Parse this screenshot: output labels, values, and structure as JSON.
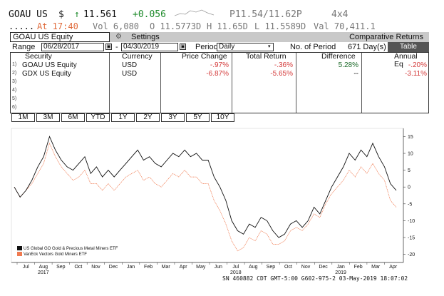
{
  "ticker": {
    "symbol": "GOAU US",
    "currency_symbol": "$",
    "arrow": "↑",
    "last": "11.561",
    "change": "+0.056",
    "bid_ask": "P11.54/11.62P",
    "size": "4x4",
    "dots": ".....",
    "time": "At 17:40",
    "vol": "Vol 6,080",
    "open": "O 11.5773D",
    "high": "H 11.65D",
    "low": "L 11.5589D",
    "val": "Val 70,411.1"
  },
  "titlebar": {
    "security": "GOAU US Equity",
    "settings": "Settings",
    "comparative": "Comparative Returns"
  },
  "range": {
    "label": "Range",
    "start": "06/28/2017",
    "end": "04/30/2019",
    "period_label": "Period",
    "period_value": "Daily",
    "num_periods_label": "No. of Period",
    "num_periods_value": "671 Day(s)",
    "table_button": "Table"
  },
  "grid": {
    "headers": {
      "security": "Security",
      "currency": "Currency",
      "price_change": "Price Change",
      "total_return": "Total Return",
      "difference": "Difference",
      "annual_eq": "Annual Eq"
    },
    "rows": [
      {
        "num": "1)",
        "security": "GOAU US Equity",
        "currency": "USD",
        "price_change": "-.97%",
        "total_return": "-.36%",
        "difference": "5.28%",
        "annual_eq": "-.20%"
      },
      {
        "num": "2)",
        "security": "GDX US Equity",
        "currency": "USD",
        "price_change": "-6.87%",
        "total_return": "-5.65%",
        "difference": "--",
        "annual_eq": "-3.11%"
      }
    ],
    "empty_row_nums": [
      "3)",
      "4)",
      "5)",
      "6)"
    ]
  },
  "periods": [
    "1M",
    "3M",
    "6M",
    "YTD",
    "1Y",
    "2Y",
    "3Y",
    "5Y",
    "10Y"
  ],
  "chart_data": {
    "type": "line",
    "x_tick_labels": [
      "Jul",
      "Aug",
      "Sep",
      "Oct",
      "Nov",
      "Dec",
      "Jan",
      "Feb",
      "Mar",
      "Apr",
      "May",
      "Jun",
      "Jul",
      "Aug",
      "Sep",
      "Oct",
      "Nov",
      "Dec",
      "Jan",
      "Feb",
      "Mar",
      "Apr"
    ],
    "year_labels": [
      {
        "label": "2017",
        "after_month": 1
      },
      {
        "label": "2018",
        "after_month": 12
      },
      {
        "label": "2019",
        "after_month": 18
      }
    ],
    "y_ticks": [
      15,
      10,
      5,
      0,
      -5,
      -10,
      -15,
      -20
    ],
    "ylim": [
      -22,
      17
    ],
    "series": [
      {
        "name": "US Global GO Gold & Precious Metal Miners ETF",
        "color": "#111111",
        "values": [
          0,
          -3,
          -1,
          2,
          6,
          9,
          15,
          11,
          8,
          6,
          5,
          7,
          9,
          4,
          6,
          3,
          5,
          3,
          5,
          7,
          9,
          11,
          8,
          9,
          7,
          6,
          8,
          10,
          9,
          11,
          9,
          10,
          8,
          8,
          3,
          0,
          -4,
          -10,
          -13,
          -14,
          -11,
          -12,
          -9,
          -10,
          -13,
          -15,
          -14,
          -11,
          -10,
          -12,
          -10,
          -6,
          -8,
          -4,
          0,
          3,
          6,
          10,
          8,
          11,
          9,
          13,
          9,
          6,
          1,
          -1
        ]
      },
      {
        "name": "VanEck Vectors Gold Miners ETF",
        "color": "#f07a50",
        "values": [
          0,
          -3,
          -1,
          1,
          4,
          7,
          13,
          9,
          6,
          4,
          2,
          3,
          5,
          1,
          1,
          -1,
          1,
          -1,
          1,
          3,
          4,
          5,
          2,
          3,
          1,
          0,
          2,
          4,
          3,
          5,
          3,
          3,
          1,
          1,
          -4,
          -7,
          -11,
          -16,
          -19,
          -18,
          -15,
          -16,
          -13,
          -14,
          -17,
          -17,
          -16,
          -13,
          -12,
          -13,
          -11,
          -8,
          -9,
          -5,
          -2,
          0,
          2,
          5,
          3,
          6,
          4,
          7,
          4,
          2,
          -4,
          -6
        ]
      }
    ]
  },
  "footer": "SN 460882 CDT  GMT-5:00 G602-975-2 03-May-2019 18:07:02"
}
